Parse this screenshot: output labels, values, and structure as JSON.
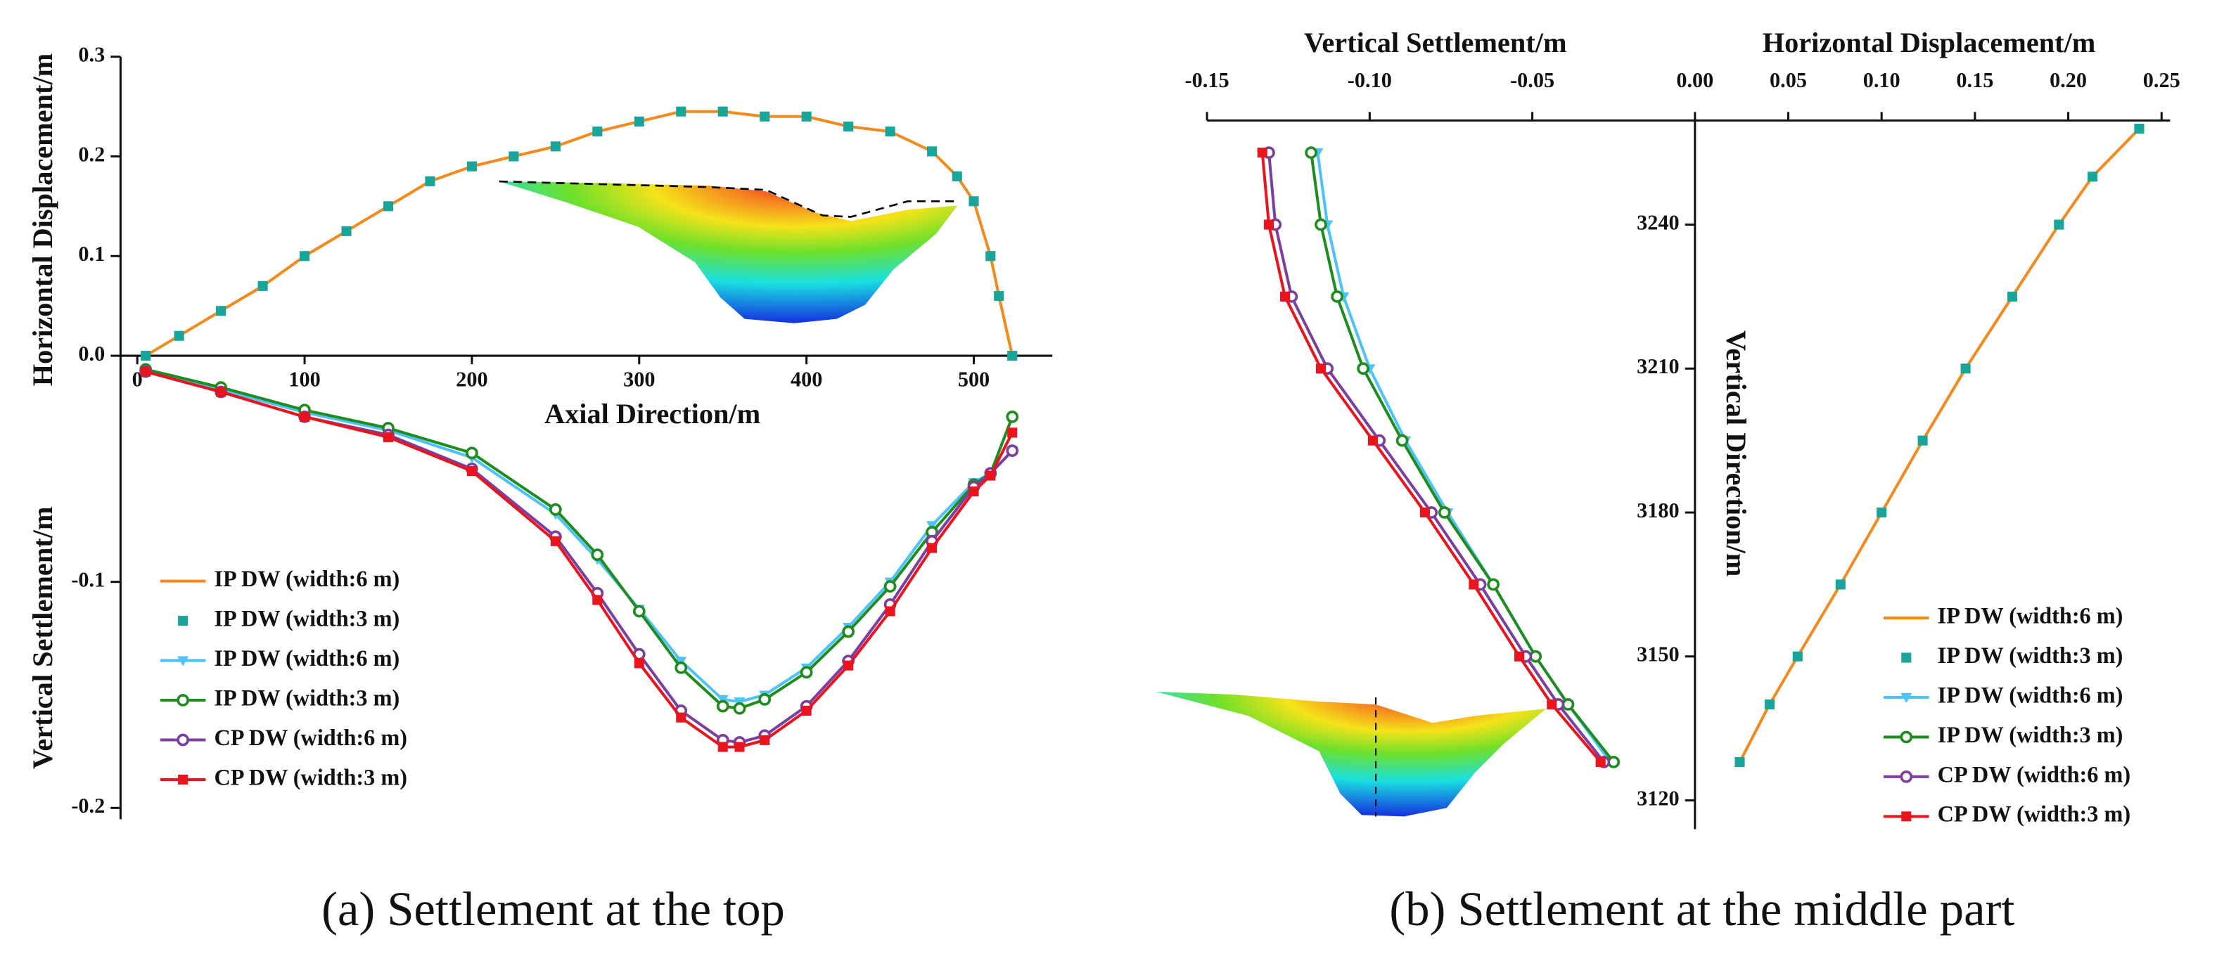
{
  "chart_data": [
    {
      "type": "line",
      "xlabel": "Axial Direction/m",
      "ylabel": "Horizontal Displacement/m",
      "y2label": "Vertical Settlement/m",
      "caption": "(a) Settlement at the top",
      "xlim": [
        -10,
        547
      ],
      "xticks": [
        0,
        100,
        200,
        300,
        400,
        500
      ],
      "ylim": [
        0,
        0.3
      ],
      "yticks": [
        {
          "value": 0,
          "label": "0.0"
        },
        0.1,
        0.2,
        0.3
      ],
      "y2lim": [
        -0.205,
        0
      ],
      "y2ticks": [
        -0.1,
        -0.2
      ],
      "legend": "lower left",
      "series": [
        {
          "name": "IP DW (width:6 m)",
          "color": "#f28a1e",
          "marker": "none",
          "x": [
            5,
            25,
            50,
            75,
            100,
            125,
            150,
            175,
            200,
            225,
            250,
            275,
            300,
            325,
            350,
            375,
            400,
            425,
            450,
            475,
            490,
            500,
            510,
            515,
            523
          ],
          "values": [
            0,
            0.02,
            0.045,
            0.07,
            0.1,
            0.125,
            0.15,
            0.175,
            0.19,
            0.2,
            0.21,
            0.225,
            0.235,
            0.245,
            0.245,
            0.24,
            0.24,
            0.23,
            0.225,
            0.205,
            0.18,
            0.155,
            0.1,
            0.06,
            0
          ]
        },
        {
          "name": "IP DW (width:3 m)",
          "color": "#1aa59a",
          "marker": "square",
          "line": false,
          "x": [
            5,
            25,
            50,
            75,
            100,
            125,
            150,
            175,
            200,
            225,
            250,
            275,
            300,
            325,
            350,
            375,
            400,
            425,
            450,
            475,
            490,
            500,
            510,
            515,
            523
          ],
          "values": [
            0,
            0.02,
            0.045,
            0.07,
            0.1,
            0.125,
            0.15,
            0.175,
            0.19,
            0.2,
            0.21,
            0.225,
            0.235,
            0.245,
            0.245,
            0.24,
            0.24,
            0.23,
            0.225,
            0.205,
            0.18,
            0.155,
            0.1,
            0.06,
            0
          ]
        },
        {
          "name": "IP DW (width:6 m)",
          "color": "#4fc3f7",
          "marker": "triangle",
          "axis": "y2",
          "x": [
            5,
            50,
            100,
            150,
            200,
            250,
            275,
            300,
            325,
            350,
            360,
            375,
            400,
            425,
            450,
            475,
            500,
            510,
            523
          ],
          "values": [
            -0.007,
            -0.015,
            -0.025,
            -0.033,
            -0.045,
            -0.07,
            -0.09,
            -0.112,
            -0.135,
            -0.152,
            -0.153,
            -0.15,
            -0.138,
            -0.12,
            -0.1,
            -0.075,
            -0.056,
            -0.052,
            -0.042
          ]
        },
        {
          "name": "IP DW (width:3 m)",
          "color": "#1e8c1e",
          "marker": "circle",
          "axis": "y2",
          "x": [
            5,
            50,
            100,
            150,
            200,
            250,
            275,
            300,
            325,
            350,
            360,
            375,
            400,
            425,
            450,
            475,
            500,
            510,
            523
          ],
          "values": [
            -0.006,
            -0.014,
            -0.024,
            -0.032,
            -0.043,
            -0.068,
            -0.088,
            -0.113,
            -0.138,
            -0.155,
            -0.156,
            -0.152,
            -0.14,
            -0.122,
            -0.102,
            -0.078,
            -0.057,
            -0.052,
            -0.027
          ]
        },
        {
          "name": "CP DW (width:6 m)",
          "color": "#7b3fa0",
          "marker": "circle",
          "axis": "y2",
          "x": [
            5,
            50,
            100,
            150,
            200,
            250,
            275,
            300,
            325,
            350,
            360,
            375,
            400,
            425,
            450,
            475,
            500,
            510,
            523
          ],
          "values": [
            -0.007,
            -0.016,
            -0.027,
            -0.035,
            -0.05,
            -0.08,
            -0.105,
            -0.132,
            -0.157,
            -0.17,
            -0.171,
            -0.168,
            -0.155,
            -0.135,
            -0.11,
            -0.082,
            -0.058,
            -0.052,
            -0.042
          ]
        },
        {
          "name": "CP DW (width:3 m)",
          "color": "#e8141e",
          "marker": "square",
          "axis": "y2",
          "x": [
            5,
            50,
            100,
            150,
            200,
            250,
            275,
            300,
            325,
            350,
            360,
            375,
            400,
            425,
            450,
            475,
            500,
            510,
            523
          ],
          "values": [
            -0.007,
            -0.016,
            -0.027,
            -0.036,
            -0.051,
            -0.082,
            -0.108,
            -0.136,
            -0.16,
            -0.173,
            -0.173,
            -0.17,
            -0.157,
            -0.137,
            -0.113,
            -0.085,
            -0.06,
            -0.053,
            -0.034
          ]
        }
      ]
    },
    {
      "type": "line",
      "xlabel": "Vertical Settlement/m",
      "xlim": [
        -0.15,
        0
      ],
      "xticks": [
        -0.15,
        {
          "value": -0.1,
          "label": "-0.10"
        },
        -0.05
      ],
      "ylim": [
        3114,
        3262
      ],
      "series": [
        {
          "name": "IP DW (width:6 m)",
          "color": "#4fc3f7",
          "marker": "triangle",
          "y": [
            3255,
            3240,
            3225,
            3210,
            3195,
            3180,
            3165,
            3150,
            3140,
            3128
          ],
          "values": [
            -0.116,
            -0.113,
            -0.108,
            -0.1,
            -0.089,
            -0.076,
            -0.062,
            -0.049,
            -0.039,
            -0.026
          ]
        },
        {
          "name": "IP DW (width:3 m)",
          "color": "#1e8c1e",
          "marker": "circle",
          "y": [
            3255,
            3240,
            3225,
            3210,
            3195,
            3180,
            3165,
            3150,
            3140,
            3128
          ],
          "values": [
            -0.118,
            -0.115,
            -0.11,
            -0.102,
            -0.09,
            -0.077,
            -0.062,
            -0.049,
            -0.039,
            -0.025
          ]
        },
        {
          "name": "CP DW (width:6 m)",
          "color": "#7b3fa0",
          "marker": "circle",
          "y": [
            3255,
            3240,
            3225,
            3210,
            3195,
            3180,
            3165,
            3150,
            3140,
            3128
          ],
          "values": [
            -0.131,
            -0.129,
            -0.124,
            -0.113,
            -0.097,
            -0.081,
            -0.066,
            -0.052,
            -0.042,
            -0.028
          ]
        },
        {
          "name": "CP DW (width:3 m)",
          "color": "#e8141e",
          "marker": "square",
          "y": [
            3255,
            3240,
            3225,
            3210,
            3195,
            3180,
            3165,
            3150,
            3140,
            3128
          ],
          "values": [
            -0.133,
            -0.131,
            -0.126,
            -0.115,
            -0.099,
            -0.083,
            -0.068,
            -0.054,
            -0.044,
            -0.029
          ]
        }
      ]
    },
    {
      "type": "line",
      "xlabel": "Horizontal Displacement/m",
      "ylabel": "Vertical Direction/m",
      "caption": "(b) Settlement at the middle part",
      "xlim": [
        0,
        0.25
      ],
      "xticks": [
        {
          "value": 0,
          "label": "0.00"
        },
        0.05,
        {
          "value": 0.1,
          "label": "0.10"
        },
        0.15,
        {
          "value": 0.2,
          "label": "0.20"
        },
        0.25
      ],
      "ylim": [
        3114,
        3262
      ],
      "yticks": [
        3120,
        3150,
        3180,
        3210,
        3240
      ],
      "legend": "lower right",
      "series": [
        {
          "name": "IP DW (width:6 m)",
          "color": "#f28a1e",
          "marker": "none",
          "y": [
            3128,
            3140,
            3150,
            3165,
            3180,
            3195,
            3210,
            3225,
            3240,
            3250,
            3260
          ],
          "values": [
            0.024,
            0.04,
            0.055,
            0.078,
            0.1,
            0.122,
            0.145,
            0.17,
            0.195,
            0.213,
            0.238
          ]
        },
        {
          "name": "IP DW (width:3 m)",
          "color": "#1aa59a",
          "marker": "square",
          "line": false,
          "y": [
            3128,
            3140,
            3150,
            3165,
            3180,
            3195,
            3210,
            3225,
            3240,
            3250,
            3260
          ],
          "values": [
            0.024,
            0.04,
            0.055,
            0.078,
            0.1,
            0.122,
            0.145,
            0.17,
            0.195,
            0.213,
            0.238
          ]
        }
      ]
    }
  ]
}
